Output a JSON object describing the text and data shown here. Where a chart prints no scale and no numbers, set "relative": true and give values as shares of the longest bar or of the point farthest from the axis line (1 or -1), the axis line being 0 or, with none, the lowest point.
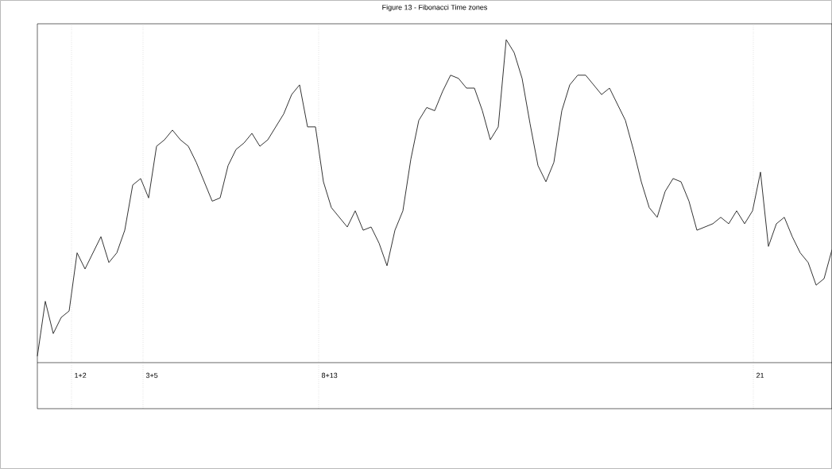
{
  "chart_data": {
    "type": "line",
    "title": "Figure 13 - Fibonacci Time zones",
    "relative": true,
    "categories": [
      null,
      null,
      null,
      null,
      null,
      null,
      null,
      null,
      null,
      null,
      null,
      null,
      null,
      null,
      null,
      null,
      null,
      null,
      null,
      null,
      null,
      null,
      null,
      null,
      null,
      null,
      null,
      null,
      null,
      null,
      null,
      null,
      null,
      null,
      null,
      null,
      null,
      null,
      null,
      null,
      null,
      null,
      null,
      null,
      null,
      null,
      null,
      null,
      null,
      null,
      null,
      null,
      null,
      null,
      null,
      null,
      null,
      null,
      null,
      null,
      null,
      null,
      null,
      null,
      null,
      null,
      null,
      null,
      null,
      null,
      null,
      null,
      null,
      null,
      null,
      null,
      null,
      null,
      null,
      null,
      null,
      null,
      null,
      null,
      null,
      null,
      null,
      null,
      null,
      null,
      null,
      null,
      null,
      null,
      null,
      null,
      null,
      null,
      null,
      null,
      null
    ],
    "series": [
      {
        "color": "#333333",
        "values": [
          0.02,
          0.19,
          0.09,
          0.14,
          0.16,
          0.34,
          0.29,
          0.34,
          0.39,
          0.31,
          0.34,
          0.41,
          0.55,
          0.57,
          0.51,
          0.67,
          0.69,
          0.72,
          0.69,
          0.67,
          0.62,
          0.56,
          0.5,
          0.51,
          0.61,
          0.66,
          0.68,
          0.71,
          0.67,
          0.69,
          0.73,
          0.77,
          0.83,
          0.86,
          0.73,
          0.73,
          0.56,
          0.48,
          0.45,
          0.42,
          0.47,
          0.41,
          0.42,
          0.37,
          0.3,
          0.41,
          0.47,
          0.63,
          0.75,
          0.79,
          0.78,
          0.84,
          0.89,
          0.88,
          0.85,
          0.85,
          0.78,
          0.69,
          0.73,
          1,
          0.96,
          0.88,
          0.74,
          0.61,
          0.56,
          0.62,
          0.78,
          0.86,
          0.89,
          0.89,
          0.86,
          0.83,
          0.85,
          0.8,
          0.75,
          0.66,
          0.56,
          0.48,
          0.45,
          0.53,
          0.57,
          0.56,
          0.5,
          0.41,
          0.42,
          0.43,
          0.45,
          0.43,
          0.47,
          0.43,
          0.47,
          0.59,
          0.36,
          0.43,
          0.45,
          0.39,
          0.34,
          0.31,
          0.24,
          0.26,
          0.35
        ]
      }
    ],
    "annotations": [
      "1+2",
      "3+5",
      "8+13",
      "21"
    ]
  }
}
